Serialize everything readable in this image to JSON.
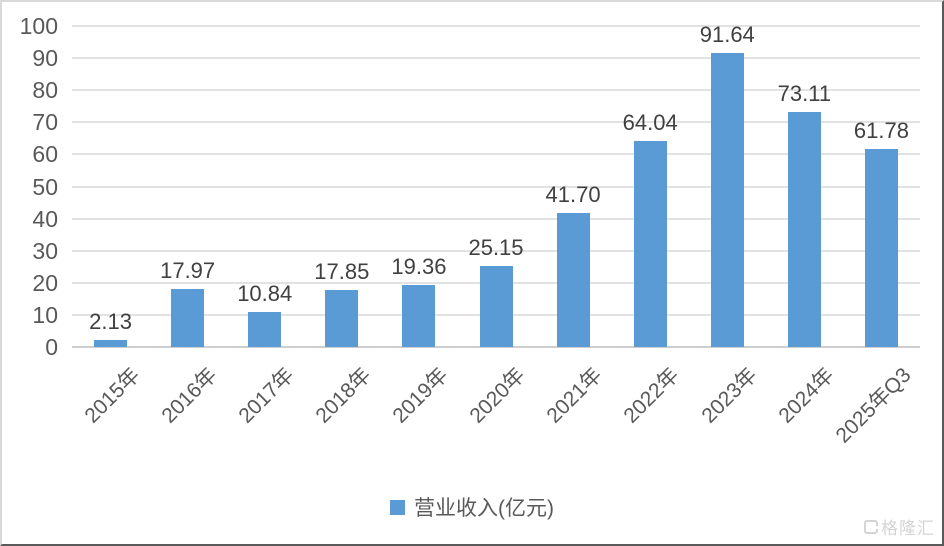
{
  "chart_data": {
    "type": "bar",
    "title": "",
    "categories": [
      "2015年",
      "2016年",
      "2017年",
      "2018年",
      "2019年",
      "2020年",
      "2021年",
      "2022年",
      "2023年",
      "2024年",
      "2025年Q3"
    ],
    "values": [
      2.13,
      17.97,
      10.84,
      17.85,
      19.36,
      25.15,
      41.7,
      64.04,
      91.64,
      73.11,
      61.78
    ],
    "value_labels": [
      "2.13",
      "17.97",
      "10.84",
      "17.85",
      "19.36",
      "25.15",
      "41.70",
      "64.04",
      "91.64",
      "73.11",
      "61.78"
    ],
    "series_name": "营业收入(亿元)",
    "xlabel": "",
    "ylabel": "",
    "ylim": [
      0,
      100
    ],
    "ytick_step": 10,
    "yticks": [
      "0",
      "10",
      "20",
      "30",
      "40",
      "50",
      "60",
      "70",
      "80",
      "90",
      "100"
    ],
    "grid": true,
    "legend_position": "bottom",
    "bar_color": "#5B9BD5",
    "gridline_color": "#e2e2e2",
    "label_color": "#404040",
    "axis_text_color": "#595959"
  },
  "legend": {
    "label": "营业收入(亿元)",
    "swatch_color": "#5B9BD5"
  },
  "watermark": {
    "text": "格隆汇"
  }
}
